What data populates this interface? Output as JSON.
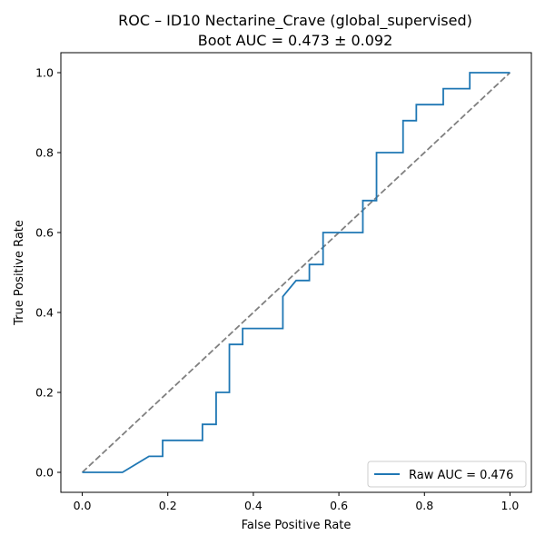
{
  "chart_data": {
    "type": "line",
    "title": "ROC – ID10 Nectarine_Crave (global_supervised)",
    "subtitle": "Boot AUC = 0.473 ± 0.092",
    "xlabel": "False Positive Rate",
    "ylabel": "True Positive Rate",
    "xlim": [
      -0.05,
      1.05
    ],
    "ylim": [
      -0.05,
      1.05
    ],
    "xticks": [
      "0.0",
      "0.2",
      "0.4",
      "0.6",
      "0.8",
      "1.0"
    ],
    "yticks": [
      "0.0",
      "0.2",
      "0.4",
      "0.6",
      "0.8",
      "1.0"
    ],
    "grid": false,
    "legend_position": "bottom-right",
    "series": [
      {
        "name": "Raw AUC = 0.476",
        "color": "#1f77b4",
        "style": "solid",
        "x": [
          0.0,
          0.094,
          0.156,
          0.188,
          0.188,
          0.281,
          0.281,
          0.313,
          0.313,
          0.344,
          0.344,
          0.375,
          0.375,
          0.469,
          0.469,
          0.5,
          0.5,
          0.531,
          0.531,
          0.563,
          0.563,
          0.656,
          0.656,
          0.688,
          0.688,
          0.75,
          0.75,
          0.781,
          0.781,
          0.844,
          0.844,
          0.906,
          0.906,
          1.0
        ],
        "y": [
          0.0,
          0.0,
          0.04,
          0.04,
          0.08,
          0.08,
          0.12,
          0.12,
          0.2,
          0.2,
          0.32,
          0.32,
          0.36,
          0.36,
          0.44,
          0.48,
          0.48,
          0.48,
          0.52,
          0.52,
          0.6,
          0.6,
          0.68,
          0.68,
          0.8,
          0.8,
          0.88,
          0.88,
          0.92,
          0.92,
          0.96,
          0.96,
          1.0,
          1.0
        ]
      },
      {
        "name": "",
        "color": "#808080",
        "style": "dashed",
        "x": [
          0.0,
          1.0
        ],
        "y": [
          0.0,
          1.0
        ]
      }
    ]
  }
}
